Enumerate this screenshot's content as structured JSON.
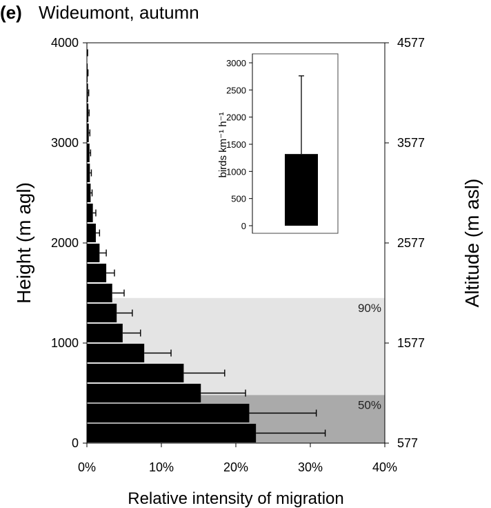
{
  "chart_data": {
    "type": "bar",
    "orientation": "horizontal",
    "panel_label": "(e)",
    "title": "Wideumont, autumn",
    "xlabel": "Relative intensity of migration",
    "ylabel_left": "Height (m agl)",
    "ylabel_right": "Altitude (m asl)",
    "xlim": [
      0,
      40
    ],
    "x_ticks": [
      "0%",
      "10%",
      "20%",
      "30%",
      "40%"
    ],
    "ylim": [
      0,
      4000
    ],
    "y_ticks_left": [
      "0",
      "1000",
      "2000",
      "3000",
      "4000"
    ],
    "y_ticks_right": [
      "577",
      "1577",
      "2577",
      "3577",
      "4577"
    ],
    "grid": false,
    "bands": [
      {
        "label": "90%",
        "from": 0,
        "to": 1450,
        "color": "#e4e4e4"
      },
      {
        "label": "50%",
        "from": 0,
        "to": 480,
        "color": "#aaaaaa"
      }
    ],
    "bar_height_m": 200,
    "series": [
      {
        "bin_centers_m": [
          100,
          300,
          500,
          700,
          900,
          1100,
          1300,
          1500,
          1700,
          1900,
          2100,
          2300,
          2500,
          2700,
          2900,
          3100,
          3300,
          3500,
          3700,
          3900
        ],
        "values": [
          22.7,
          21.8,
          15.3,
          13.0,
          7.7,
          4.8,
          4.0,
          3.4,
          2.6,
          1.7,
          1.2,
          0.8,
          0.5,
          0.4,
          0.35,
          0.25,
          0.2,
          0.15,
          0.1,
          0.05
        ],
        "error_upper": [
          32.0,
          30.8,
          21.3,
          18.5,
          11.3,
          7.2,
          6.1,
          5.0,
          3.7,
          2.6,
          1.7,
          1.2,
          0.7,
          0.6,
          0.5,
          0.4,
          0.3,
          0.25,
          0.15,
          0.1
        ]
      }
    ],
    "inset": {
      "type": "bar",
      "ylabel": "birds km⁻¹ h⁻¹",
      "ylim": [
        0,
        3000
      ],
      "y_ticks": [
        "0",
        "500",
        "1000",
        "1500",
        "2000",
        "2500",
        "3000"
      ],
      "value": 1320,
      "error_upper": 2760
    }
  }
}
